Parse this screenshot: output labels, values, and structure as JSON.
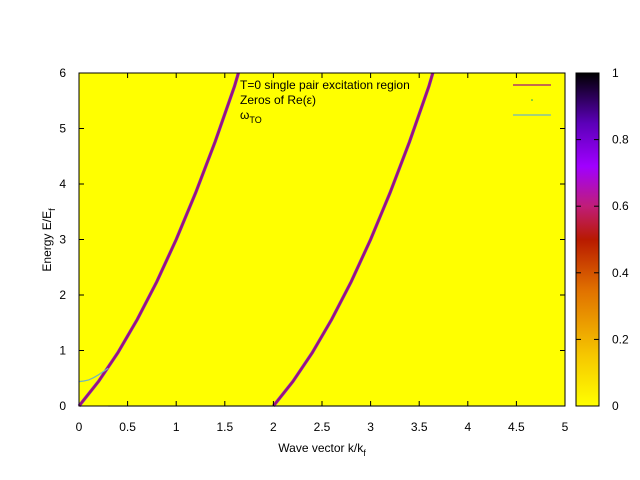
{
  "chart_data": {
    "type": "heatmap",
    "title": "",
    "xlabel": "Wave vector k/k",
    "xlabel_sub": "f",
    "ylabel": "Energy E/E",
    "ylabel_sub": "f",
    "xlim": [
      0,
      5
    ],
    "ylim": [
      0,
      6
    ],
    "x_ticks": [
      "0",
      "0.5",
      "1",
      "1.5",
      "2",
      "2.5",
      "3",
      "3.5",
      "4",
      "4.5",
      "5"
    ],
    "y_ticks": [
      "0",
      "1",
      "2",
      "3",
      "4",
      "5",
      "6"
    ],
    "background_value": 0,
    "colorbar": {
      "range": [
        0,
        1
      ],
      "ticks": [
        "0",
        "0.2",
        "0.4",
        "0.6",
        "0.8",
        "1"
      ],
      "colormap": "gnuplot (black-purple-red-orange-yellow)"
    },
    "legend": {
      "position": "top-right",
      "entries": [
        {
          "label": "T=0 single pair excitation region",
          "color": "#a0107a",
          "style": "line"
        },
        {
          "label": "Zeros of Re(ε)",
          "color": "#009e73",
          "style": "points"
        },
        {
          "label": "ω",
          "label_sub": "TO",
          "color": "#6fb5c0",
          "style": "line"
        }
      ]
    },
    "series": [
      {
        "name": "T=0 single pair excitation region",
        "kind": "boundary",
        "x": [
          0,
          0.2,
          0.4,
          0.6,
          0.8,
          1.0,
          1.2,
          1.4,
          1.6,
          1.64
        ],
        "y": [
          0,
          0.44,
          0.96,
          1.56,
          2.24,
          3.0,
          3.84,
          4.76,
          5.76,
          6.0
        ]
      },
      {
        "name": "T=0 single pair excitation region",
        "kind": "boundary",
        "x": [
          2.0,
          2.2,
          2.4,
          2.6,
          2.8,
          3.0,
          3.2,
          3.4,
          3.6,
          3.64
        ],
        "y": [
          0,
          0.44,
          0.96,
          1.56,
          2.24,
          3.0,
          3.84,
          4.76,
          5.76,
          6.0
        ]
      },
      {
        "name": "ωTO",
        "x": [
          0,
          0.05,
          0.1,
          0.15,
          0.2,
          0.25,
          0.3
        ],
        "y": [
          0.44,
          0.45,
          0.47,
          0.51,
          0.56,
          0.62,
          0.68
        ]
      },
      {
        "name": "Zeros of Re(ε)",
        "x": [
          0.3,
          5.0
        ],
        "y": [
          0.0,
          0.0
        ]
      }
    ]
  }
}
